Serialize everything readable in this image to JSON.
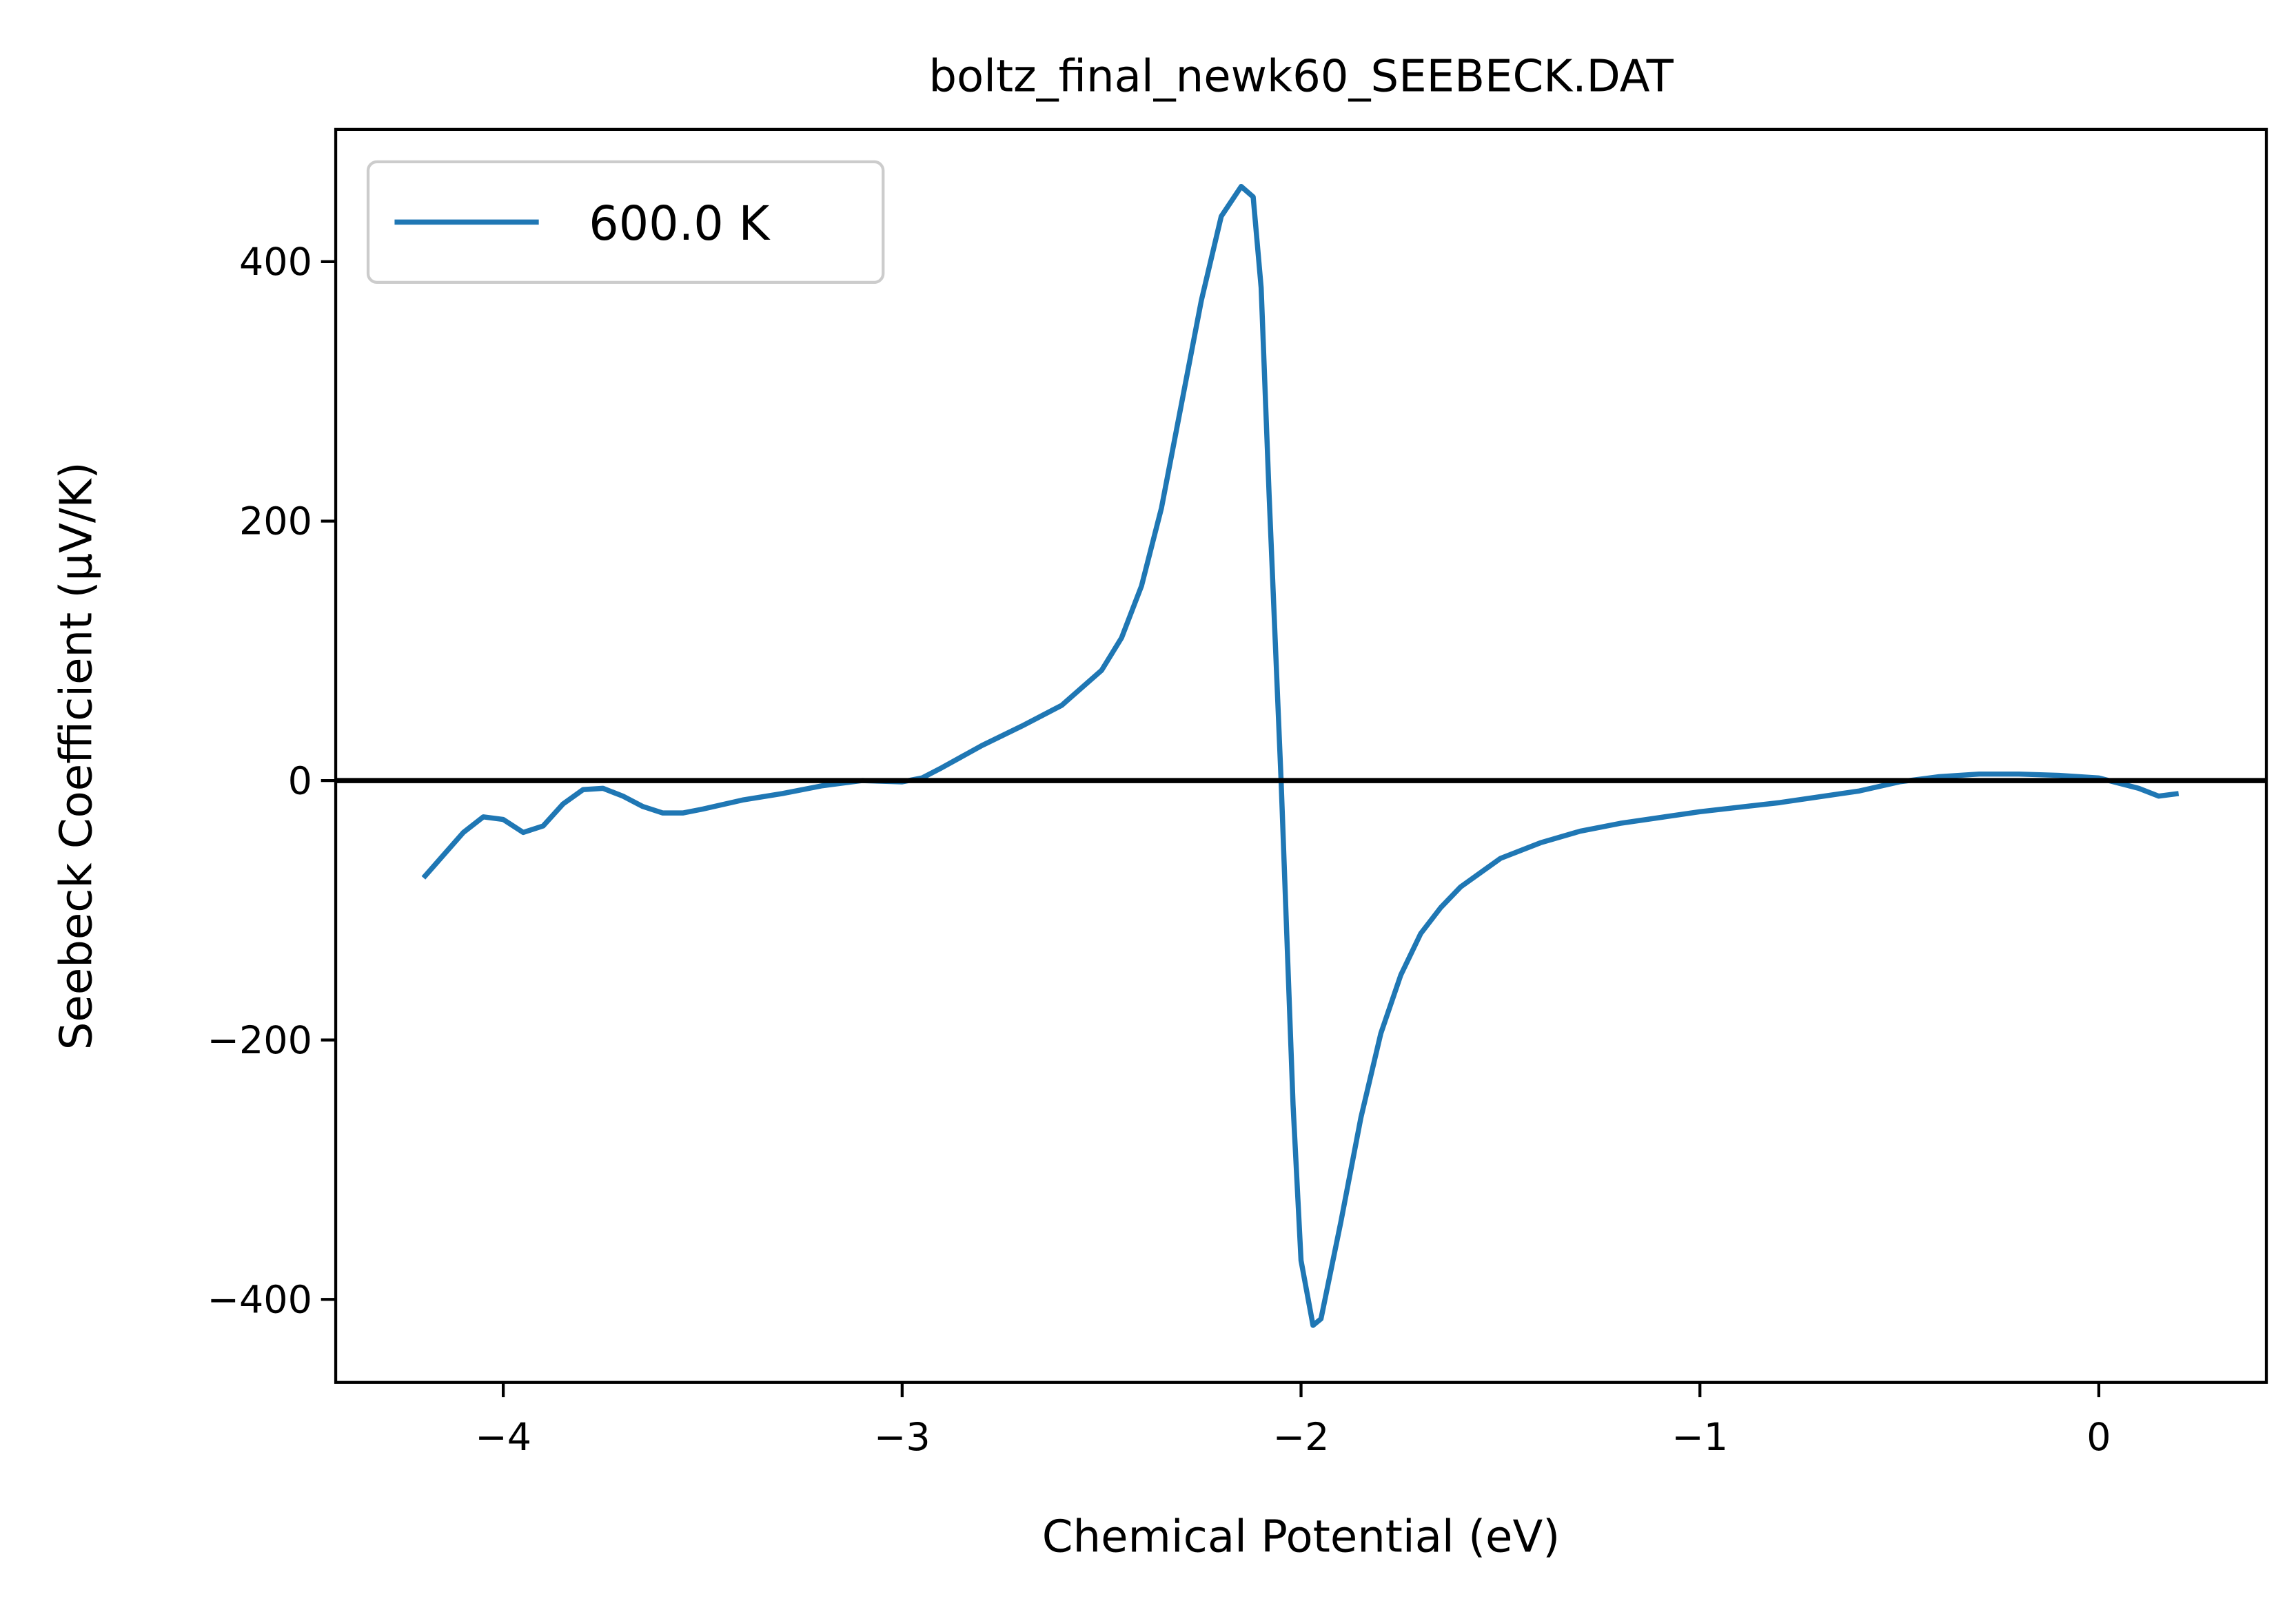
{
  "chart_data": {
    "type": "line",
    "title": "boltz_final_newk60_SEEBECK.DAT",
    "x_label": "Chemical Potential (eV)",
    "y_label": "Seebeck Coefficient (μV/K)",
    "x": [
      -4.2,
      -4.1,
      -4.05,
      -4.0,
      -3.95,
      -3.9,
      -3.85,
      -3.8,
      -3.75,
      -3.7,
      -3.65,
      -3.6,
      -3.55,
      -3.5,
      -3.4,
      -3.3,
      -3.2,
      -3.1,
      -3.0,
      -2.95,
      -2.9,
      -2.8,
      -2.7,
      -2.6,
      -2.5,
      -2.45,
      -2.4,
      -2.35,
      -2.3,
      -2.25,
      -2.2,
      -2.15,
      -2.12,
      -2.1,
      -2.08,
      -2.05,
      -2.02,
      -2.0,
      -1.97,
      -1.95,
      -1.9,
      -1.85,
      -1.8,
      -1.75,
      -1.7,
      -1.65,
      -1.6,
      -1.5,
      -1.4,
      -1.3,
      -1.2,
      -1.0,
      -0.8,
      -0.6,
      -0.5,
      -0.4,
      -0.3,
      -0.2,
      -0.1,
      0.0,
      0.05,
      0.1,
      0.15,
      0.2
    ],
    "series": [
      {
        "name": "600.0 K",
        "color": "#1f77b4",
        "values": [
          -75,
          -40,
          -28,
          -30,
          -40,
          -35,
          -18,
          -7,
          -6,
          -12,
          -20,
          -25,
          -25,
          -22,
          -15,
          -10,
          -4,
          0,
          -1,
          2,
          10,
          27,
          42,
          58,
          85,
          110,
          150,
          210,
          290,
          370,
          435,
          458,
          450,
          380,
          220,
          0,
          -250,
          -370,
          -420,
          -415,
          -340,
          -260,
          -195,
          -150,
          -118,
          -98,
          -82,
          -60,
          -48,
          -39,
          -33,
          -24,
          -17,
          -8,
          -1,
          3,
          5,
          5,
          4,
          2,
          -2,
          -6,
          -12,
          -10
        ]
      }
    ],
    "hline": 0,
    "xlim": [
      -4.42,
      0.42
    ],
    "ylim": [
      -464,
      502
    ],
    "xticks": [
      {
        "value": -4,
        "label": "−4"
      },
      {
        "value": -3,
        "label": "−3"
      },
      {
        "value": -2,
        "label": "−2"
      },
      {
        "value": -1,
        "label": "−1"
      },
      0
    ],
    "yticks": [
      {
        "value": -400,
        "label": "−400"
      },
      {
        "value": -200,
        "label": "−200"
      },
      0,
      200,
      400
    ],
    "legend": "upper left"
  }
}
